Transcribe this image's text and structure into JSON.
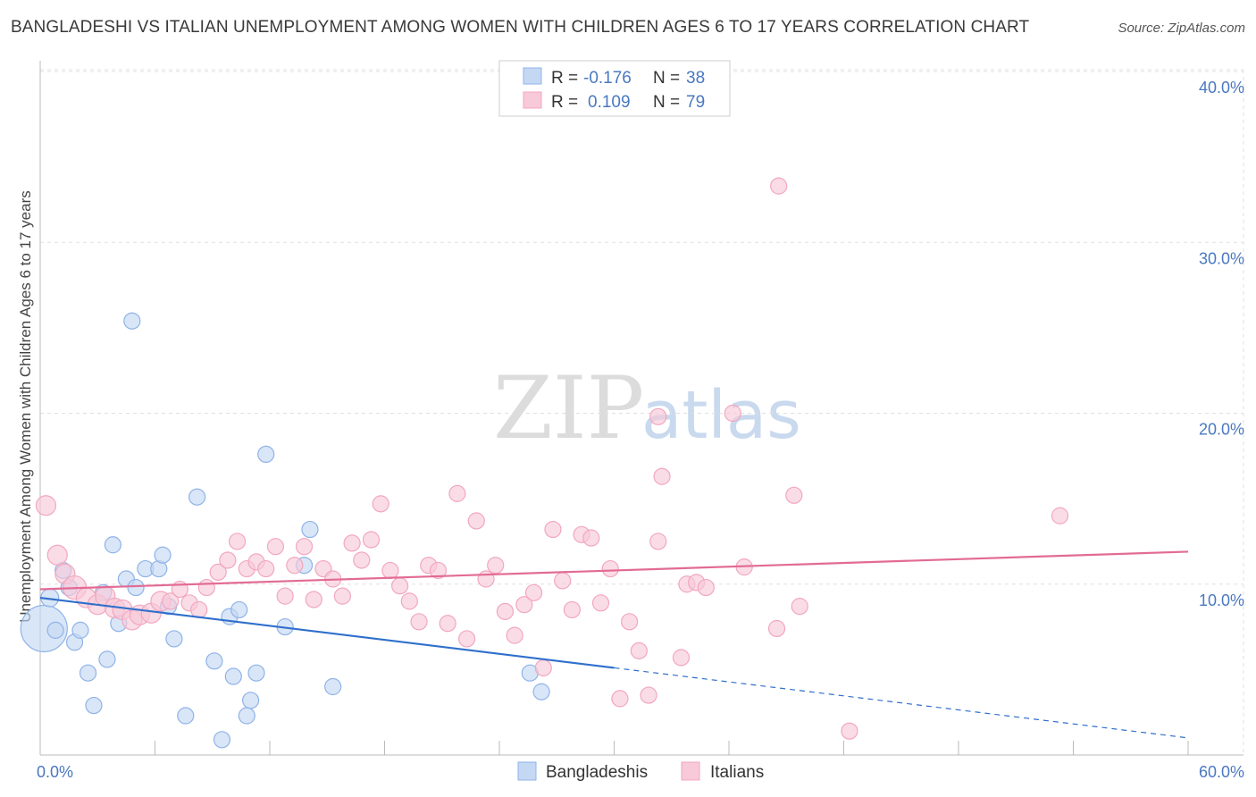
{
  "title": "BANGLADESHI VS ITALIAN UNEMPLOYMENT AMONG WOMEN WITH CHILDREN AGES 6 TO 17 YEARS CORRELATION CHART",
  "source": "Source: ZipAtlas.com",
  "watermark": {
    "zip": "ZIP",
    "atlas": "atlas"
  },
  "chart_data": {
    "type": "scatter",
    "xlabel": "",
    "ylabel": "Unemployment Among Women with Children Ages 6 to 17 years",
    "xlim": [
      0,
      60
    ],
    "ylim": [
      0,
      40
    ],
    "x_tick_labels": [
      "0.0%",
      "60.0%"
    ],
    "y_ticks": [
      10,
      20,
      30,
      40
    ],
    "y_tick_labels": [
      "10.0%",
      "20.0%",
      "30.0%",
      "40.0%"
    ],
    "grid": true,
    "legend": {
      "placement": "top-center",
      "rows": [
        {
          "r_label": "R =",
          "r_value": "-0.176",
          "n_label": "N =",
          "n_value": "38"
        },
        {
          "r_label": "R =",
          "r_value": "0.109",
          "n_label": "N =",
          "n_value": "79"
        }
      ]
    },
    "series": [
      {
        "name": "Bangladeshis",
        "color": "#8fb3e8",
        "fill": "#c5d8f3",
        "line_color": "#2f6fcc",
        "trend": {
          "x0": 0,
          "y0": 9.2,
          "x1": 30,
          "y1": 5.1,
          "dash_to_x": 60,
          "dash_to_y": 1.0
        },
        "points": [
          [
            0.2,
            7.4,
            26
          ],
          [
            0.5,
            9.2,
            10
          ],
          [
            0.8,
            7.3,
            9
          ],
          [
            1.2,
            10.8,
            9
          ],
          [
            1.5,
            9.8,
            9
          ],
          [
            1.8,
            6.6,
            9
          ],
          [
            2.1,
            7.3,
            9
          ],
          [
            2.5,
            4.8,
            9
          ],
          [
            2.8,
            2.9,
            9
          ],
          [
            3.3,
            9.5,
            9
          ],
          [
            3.5,
            5.6,
            9
          ],
          [
            3.8,
            12.3,
            9
          ],
          [
            4.1,
            7.7,
            9
          ],
          [
            4.5,
            10.3,
            9
          ],
          [
            4.8,
            25.4,
            9
          ],
          [
            5.0,
            9.8,
            9
          ],
          [
            5.5,
            10.9,
            9
          ],
          [
            6.2,
            10.9,
            9
          ],
          [
            6.4,
            11.7,
            9
          ],
          [
            6.7,
            8.7,
            9
          ],
          [
            7.0,
            6.8,
            9
          ],
          [
            7.6,
            2.3,
            9
          ],
          [
            8.2,
            15.1,
            9
          ],
          [
            9.1,
            5.5,
            9
          ],
          [
            9.5,
            0.9,
            9
          ],
          [
            9.9,
            8.1,
            9
          ],
          [
            10.1,
            4.6,
            9
          ],
          [
            10.4,
            8.5,
            9
          ],
          [
            10.8,
            2.3,
            9
          ],
          [
            11.0,
            3.2,
            9
          ],
          [
            11.3,
            4.8,
            9
          ],
          [
            11.8,
            17.6,
            9
          ],
          [
            12.8,
            7.5,
            9
          ],
          [
            13.8,
            11.1,
            9
          ],
          [
            14.1,
            13.2,
            9
          ],
          [
            15.3,
            4.0,
            9
          ],
          [
            25.6,
            4.8,
            9
          ],
          [
            26.2,
            3.7,
            9
          ]
        ]
      },
      {
        "name": "Italians",
        "color": "#f2a7bf",
        "fill": "#f8c9d8",
        "line_color": "#e26b95",
        "trend": {
          "x0": 0,
          "y0": 9.7,
          "x1": 60,
          "y1": 11.9
        },
        "points": [
          [
            0.3,
            14.6,
            11
          ],
          [
            0.9,
            11.7,
            11
          ],
          [
            1.3,
            10.6,
            11
          ],
          [
            1.8,
            9.8,
            13
          ],
          [
            2.4,
            9.2,
            11
          ],
          [
            3.0,
            8.8,
            11
          ],
          [
            3.4,
            9.3,
            11
          ],
          [
            3.9,
            8.6,
            11
          ],
          [
            4.3,
            8.5,
            11
          ],
          [
            4.8,
            7.9,
            11
          ],
          [
            5.2,
            8.2,
            11
          ],
          [
            5.8,
            8.3,
            11
          ],
          [
            6.3,
            9.0,
            11
          ],
          [
            6.8,
            9.0,
            9
          ],
          [
            7.3,
            9.7,
            9
          ],
          [
            7.8,
            8.9,
            9
          ],
          [
            8.3,
            8.5,
            9
          ],
          [
            8.7,
            9.8,
            9
          ],
          [
            9.3,
            10.7,
            9
          ],
          [
            9.8,
            11.4,
            9
          ],
          [
            10.3,
            12.5,
            9
          ],
          [
            10.8,
            10.9,
            9
          ],
          [
            11.3,
            11.3,
            9
          ],
          [
            11.8,
            10.9,
            9
          ],
          [
            12.3,
            12.2,
            9
          ],
          [
            12.8,
            9.3,
            9
          ],
          [
            13.3,
            11.1,
            9
          ],
          [
            13.8,
            12.2,
            9
          ],
          [
            14.3,
            9.1,
            9
          ],
          [
            14.8,
            10.9,
            9
          ],
          [
            15.3,
            10.3,
            9
          ],
          [
            15.8,
            9.3,
            9
          ],
          [
            16.3,
            12.4,
            9
          ],
          [
            16.8,
            11.4,
            9
          ],
          [
            17.3,
            12.6,
            9
          ],
          [
            17.8,
            14.7,
            9
          ],
          [
            18.3,
            10.8,
            9
          ],
          [
            18.8,
            9.9,
            9
          ],
          [
            19.3,
            9.0,
            9
          ],
          [
            19.8,
            7.8,
            9
          ],
          [
            20.3,
            11.1,
            9
          ],
          [
            20.8,
            10.8,
            9
          ],
          [
            21.3,
            7.7,
            9
          ],
          [
            21.8,
            15.3,
            9
          ],
          [
            22.3,
            6.8,
            9
          ],
          [
            22.8,
            13.7,
            9
          ],
          [
            23.3,
            10.3,
            9
          ],
          [
            23.8,
            11.1,
            9
          ],
          [
            24.3,
            8.4,
            9
          ],
          [
            24.8,
            7.0,
            9
          ],
          [
            25.3,
            8.8,
            9
          ],
          [
            25.8,
            9.5,
            9
          ],
          [
            26.3,
            5.1,
            9
          ],
          [
            26.8,
            13.2,
            9
          ],
          [
            27.3,
            10.2,
            9
          ],
          [
            27.8,
            8.5,
            9
          ],
          [
            28.3,
            12.9,
            9
          ],
          [
            28.8,
            12.7,
            9
          ],
          [
            29.3,
            8.9,
            9
          ],
          [
            29.8,
            10.9,
            9
          ],
          [
            30.3,
            3.3,
            9
          ],
          [
            30.8,
            7.8,
            9
          ],
          [
            31.3,
            6.1,
            9
          ],
          [
            31.8,
            3.5,
            9
          ],
          [
            32.3,
            12.5,
            9
          ],
          [
            32.5,
            16.3,
            9
          ],
          [
            33.5,
            5.7,
            9
          ],
          [
            33.8,
            10.0,
            9
          ],
          [
            34.3,
            10.1,
            9
          ],
          [
            34.8,
            9.8,
            9
          ],
          [
            32.3,
            19.8,
            9
          ],
          [
            36.2,
            20.0,
            9
          ],
          [
            36.8,
            11.0,
            9
          ],
          [
            38.6,
            33.3,
            9
          ],
          [
            38.5,
            7.4,
            9
          ],
          [
            39.4,
            15.2,
            9
          ],
          [
            39.7,
            8.7,
            9
          ],
          [
            42.3,
            1.4,
            9
          ],
          [
            53.3,
            14.0,
            9
          ]
        ]
      }
    ]
  }
}
